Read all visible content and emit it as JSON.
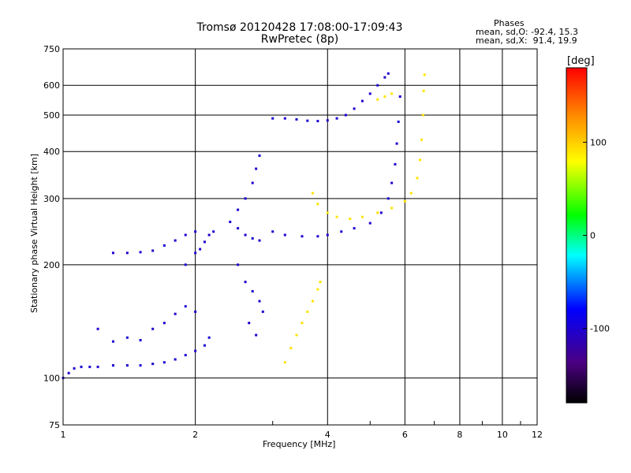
{
  "chart_data": {
    "type": "scatter",
    "title": "Tromsø 20120428 17:08:00-17:09:43",
    "subtitle": "RwPretec (8p)",
    "xlabel": "Frequency [MHz]",
    "ylabel": "Stationary phase Virtual Height [km]",
    "x_scale": "log",
    "y_scale": "log",
    "xlim": [
      1,
      12
    ],
    "ylim": [
      75,
      750
    ],
    "x_ticks": [
      1,
      2,
      4,
      6,
      8,
      10,
      12
    ],
    "y_ticks": [
      75,
      100,
      200,
      300,
      400,
      500,
      600,
      750
    ],
    "grid": true,
    "phase_stats": {
      "title": "Phases",
      "line_o": "mean, sd,O: -92.4, 15.3",
      "line_x": "mean, sd,X:  91.4, 19.9"
    },
    "colorbar": {
      "unit": "[deg]",
      "ticks": [
        "100",
        "0",
        "-100"
      ],
      "range": [
        -180,
        180
      ]
    },
    "series": [
      {
        "mode": "O",
        "phase_deg": -100,
        "points": [
          [
            1.0,
            100
          ],
          [
            1.03,
            103
          ],
          [
            1.06,
            106
          ],
          [
            1.1,
            107
          ],
          [
            1.15,
            107
          ],
          [
            1.2,
            107
          ],
          [
            1.3,
            108
          ],
          [
            1.4,
            108
          ],
          [
            1.5,
            108
          ],
          [
            1.6,
            109
          ],
          [
            1.7,
            110
          ],
          [
            1.8,
            112
          ],
          [
            1.9,
            115
          ],
          [
            2.0,
            118
          ],
          [
            2.1,
            122
          ],
          [
            2.15,
            128
          ],
          [
            1.2,
            135
          ],
          [
            1.3,
            125
          ],
          [
            1.4,
            128
          ],
          [
            1.5,
            126
          ],
          [
            1.6,
            135
          ],
          [
            1.7,
            140
          ],
          [
            1.8,
            148
          ],
          [
            1.9,
            155
          ],
          [
            2.0,
            150
          ],
          [
            1.9,
            200
          ],
          [
            2.0,
            215
          ],
          [
            2.05,
            220
          ],
          [
            2.1,
            230
          ],
          [
            2.15,
            240
          ],
          [
            2.2,
            245
          ],
          [
            1.3,
            215
          ],
          [
            1.4,
            215
          ],
          [
            1.5,
            216
          ],
          [
            1.6,
            218
          ],
          [
            1.7,
            225
          ],
          [
            1.8,
            232
          ],
          [
            1.9,
            240
          ],
          [
            2.0,
            245
          ],
          [
            2.4,
            260
          ],
          [
            2.5,
            280
          ],
          [
            2.6,
            300
          ],
          [
            2.7,
            330
          ],
          [
            2.75,
            360
          ],
          [
            2.8,
            390
          ],
          [
            2.5,
            250
          ],
          [
            2.6,
            240
          ],
          [
            2.7,
            235
          ],
          [
            2.8,
            232
          ],
          [
            2.5,
            200
          ],
          [
            2.6,
            180
          ],
          [
            2.7,
            170
          ],
          [
            2.8,
            160
          ],
          [
            2.85,
            150
          ],
          [
            2.75,
            130
          ],
          [
            2.65,
            140
          ],
          [
            3.0,
            245
          ],
          [
            3.2,
            240
          ],
          [
            3.5,
            238
          ],
          [
            3.8,
            238
          ],
          [
            4.0,
            240
          ],
          [
            4.3,
            245
          ],
          [
            4.6,
            250
          ],
          [
            5.0,
            258
          ],
          [
            5.3,
            275
          ],
          [
            5.5,
            300
          ],
          [
            5.6,
            330
          ],
          [
            5.7,
            370
          ],
          [
            5.75,
            420
          ],
          [
            5.8,
            480
          ],
          [
            5.85,
            560
          ],
          [
            3.0,
            490
          ],
          [
            3.2,
            490
          ],
          [
            3.4,
            487
          ],
          [
            3.6,
            483
          ],
          [
            3.8,
            482
          ],
          [
            4.0,
            484
          ],
          [
            4.2,
            490
          ],
          [
            4.4,
            500
          ],
          [
            4.6,
            520
          ],
          [
            4.8,
            545
          ],
          [
            5.0,
            570
          ],
          [
            5.2,
            600
          ],
          [
            5.4,
            630
          ],
          [
            5.5,
            645
          ]
        ]
      },
      {
        "mode": "X",
        "phase_deg": 91,
        "points": [
          [
            3.2,
            110
          ],
          [
            3.3,
            120
          ],
          [
            3.4,
            130
          ],
          [
            3.5,
            140
          ],
          [
            3.6,
            150
          ],
          [
            3.7,
            160
          ],
          [
            3.8,
            172
          ],
          [
            3.85,
            180
          ],
          [
            3.7,
            310
          ],
          [
            3.8,
            290
          ],
          [
            4.0,
            275
          ],
          [
            4.2,
            268
          ],
          [
            4.5,
            265
          ],
          [
            4.8,
            268
          ],
          [
            5.2,
            275
          ],
          [
            5.6,
            283
          ],
          [
            6.0,
            295
          ],
          [
            6.2,
            310
          ],
          [
            6.4,
            340
          ],
          [
            6.5,
            380
          ],
          [
            6.55,
            430
          ],
          [
            6.6,
            500
          ],
          [
            6.62,
            580
          ],
          [
            6.65,
            640
          ],
          [
            5.2,
            550
          ],
          [
            5.4,
            560
          ],
          [
            5.6,
            570
          ]
        ]
      }
    ]
  }
}
